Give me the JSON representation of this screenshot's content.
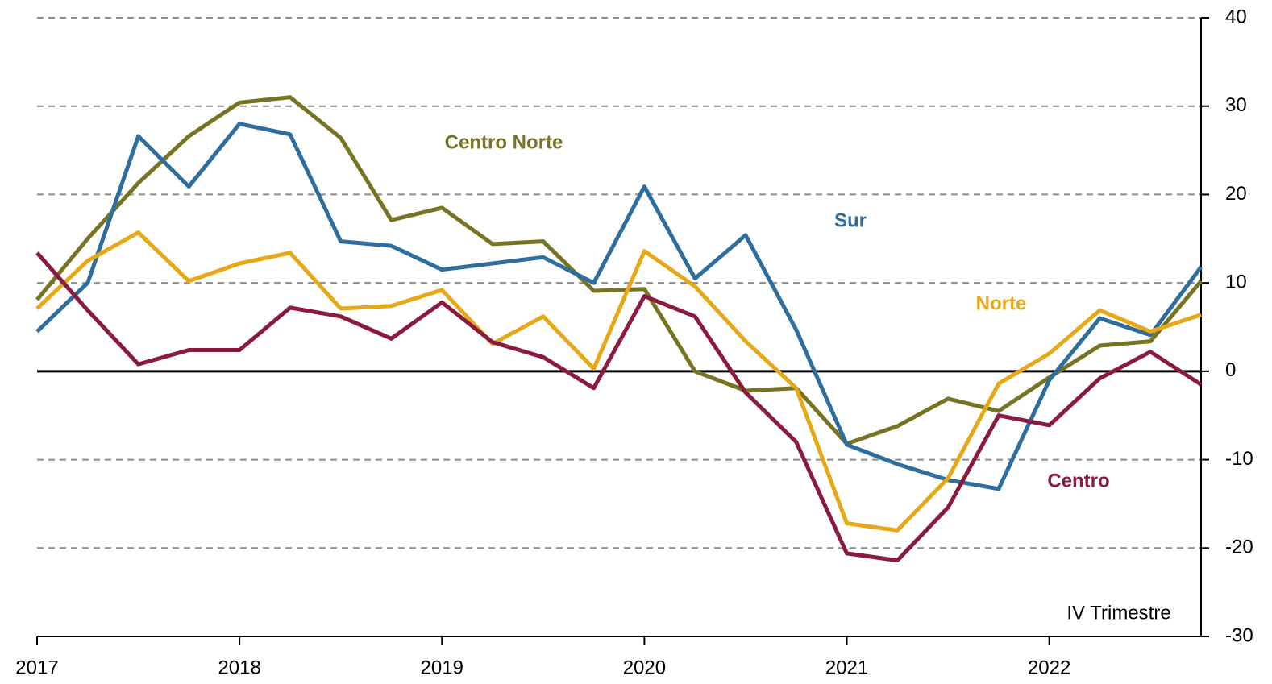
{
  "chart_data": {
    "type": "line",
    "x": [
      2017,
      2017.25,
      2017.5,
      2017.75,
      2018,
      2018.25,
      2018.5,
      2018.75,
      2019,
      2019.25,
      2019.5,
      2019.75,
      2020,
      2020.25,
      2020.5,
      2020.75,
      2021,
      2021.25,
      2021.5,
      2021.75,
      2022,
      2022.25,
      2022.5,
      2022.75
    ],
    "series": [
      {
        "name": "Centro Norte",
        "color": "#767323",
        "values": [
          8.1,
          15,
          21.3,
          26.6,
          30.4,
          31,
          26.4,
          17.1,
          18.5,
          14.4,
          14.7,
          9.1,
          9.3,
          0,
          -2.2,
          -1.9,
          -8.2,
          -6.2,
          -3.1,
          -4.5,
          -0.7,
          2.9,
          3.4,
          10.2
        ]
      },
      {
        "name": "Sur",
        "color": "#2e6e9e",
        "values": [
          4.5,
          10,
          26.6,
          20.9,
          28,
          26.8,
          14.7,
          14.2,
          11.5,
          12.2,
          12.9,
          10,
          20.9,
          10.5,
          15.4,
          4.7,
          -8.3,
          -10.5,
          -12.3,
          -13.3,
          -1,
          6,
          4.1,
          11.8
        ]
      },
      {
        "name": "Norte",
        "color": "#e6a817",
        "values": [
          7.1,
          12.5,
          15.7,
          10.2,
          12.2,
          13.4,
          7.1,
          7.4,
          9.2,
          3.1,
          6.2,
          0.3,
          13.6,
          9.6,
          3.4,
          -1.9,
          -17.2,
          -18,
          -12.1,
          -1.4,
          2,
          6.9,
          4.5,
          6.4
        ]
      },
      {
        "name": "Centro",
        "color": "#8b1a3f",
        "values": [
          13.4,
          6.9,
          0.8,
          2.4,
          2.4,
          7.2,
          6.2,
          3.7,
          7.8,
          3.3,
          1.6,
          -1.9,
          8.5,
          6.2,
          -2.4,
          -8,
          -20.6,
          -21.4,
          -15.4,
          -5,
          -6.1,
          -0.8,
          2.2,
          -1.5
        ]
      }
    ],
    "annotation": "IV Trimestre",
    "xlim": [
      2017,
      2022.75
    ],
    "xticks": [
      2017,
      2018,
      2019,
      2020,
      2021,
      2022
    ],
    "ylim": [
      -30,
      40
    ],
    "yticks": [
      -30,
      -20,
      -10,
      0,
      10,
      20,
      30,
      40
    ],
    "grid": true
  }
}
